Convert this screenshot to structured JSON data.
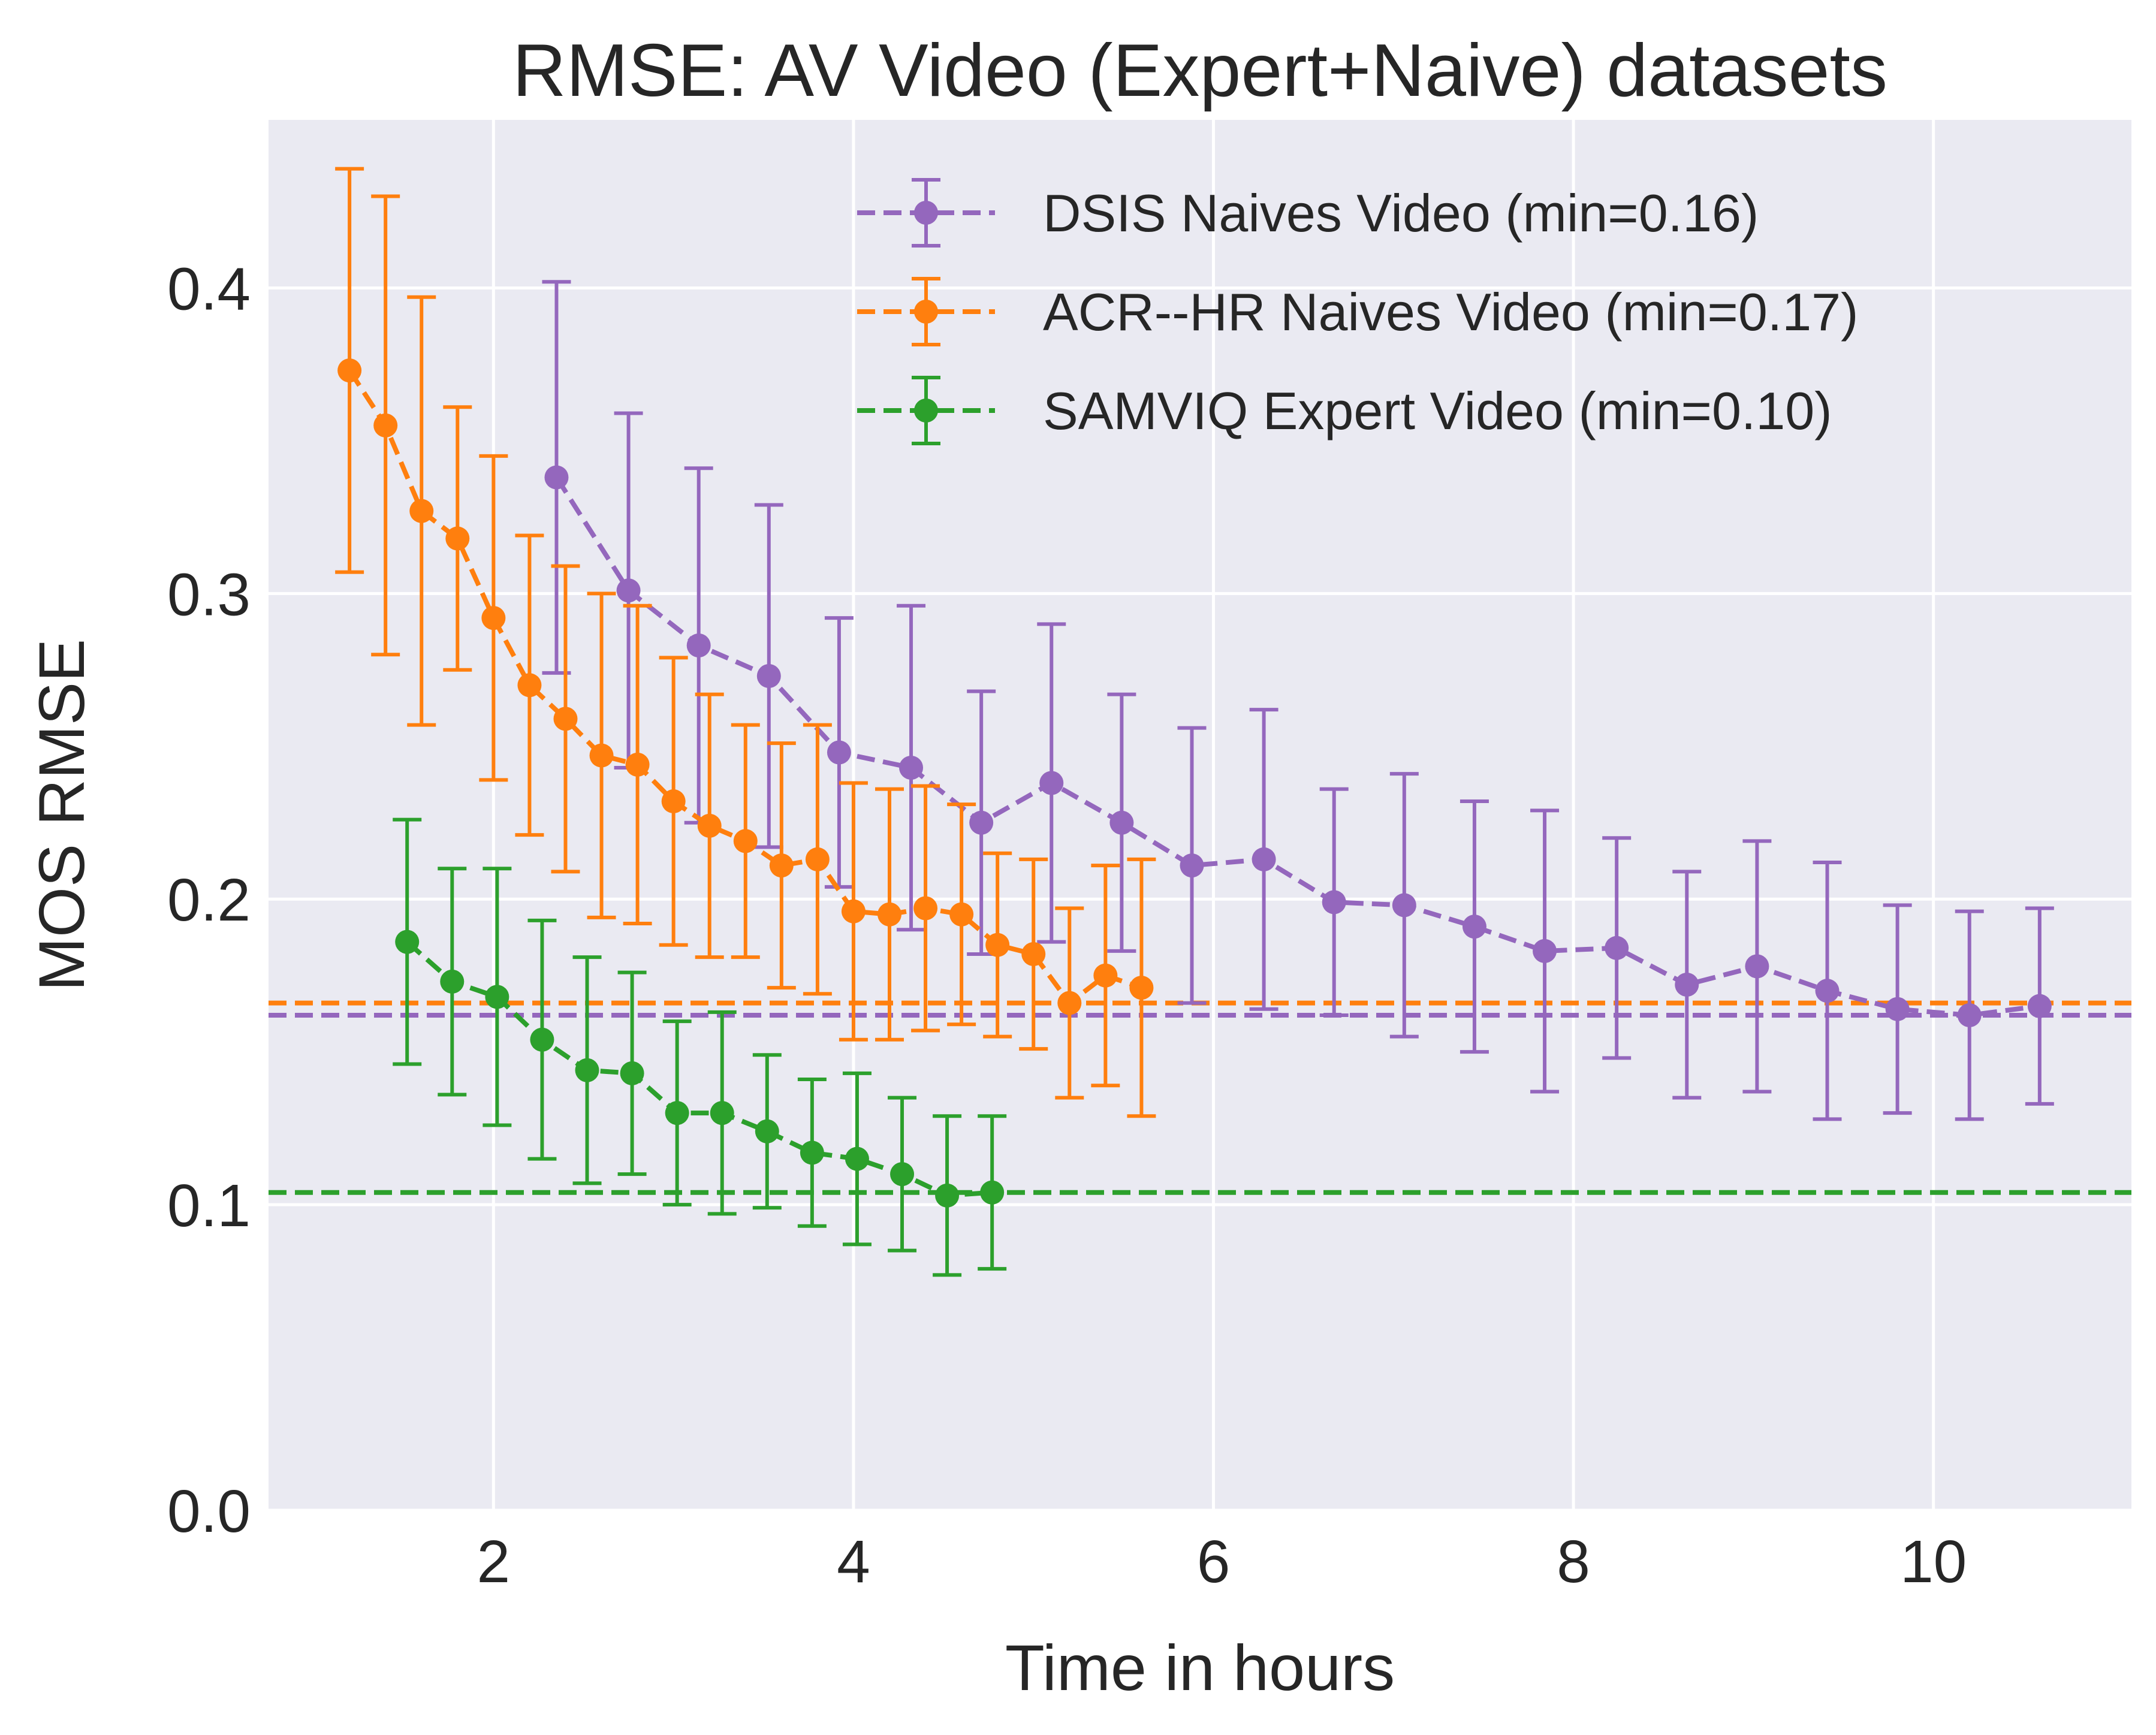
{
  "chart_data": {
    "type": "line",
    "title": "RMSE: AV Video (Expert+Naive) datasets",
    "xlabel": "Time in hours",
    "ylabel": "MOS RMSE",
    "xlim": [
      0.75,
      11.1
    ],
    "ylim": [
      0.0,
      0.455
    ],
    "xticks": [
      2,
      4,
      6,
      8,
      10
    ],
    "xtick_labels": [
      "2",
      "4",
      "6",
      "8",
      "10"
    ],
    "yticks": [
      0.0,
      0.1,
      0.2,
      0.3,
      0.4
    ],
    "ytick_labels": [
      "0.0",
      "0.1",
      "0.2",
      "0.3",
      "0.4"
    ],
    "grid": true,
    "legend_position": "top-right",
    "series": [
      {
        "name": "DSIS Naives Video (min=0.16)",
        "color": "#9467bd",
        "min_line": 0.162,
        "x": [
          2.35,
          2.75,
          3.14,
          3.53,
          3.92,
          4.32,
          4.71,
          5.1,
          5.49,
          5.88,
          6.28,
          6.67,
          7.06,
          7.45,
          7.84,
          8.24,
          8.63,
          9.02,
          9.41,
          9.8,
          10.2,
          10.59
        ],
        "y": [
          0.338,
          0.301,
          0.283,
          0.273,
          0.248,
          0.243,
          0.225,
          0.238,
          0.225,
          0.211,
          0.213,
          0.199,
          0.198,
          0.191,
          0.183,
          0.184,
          0.172,
          0.178,
          0.17,
          0.164,
          0.162,
          0.165
        ],
        "err": [
          0.064,
          0.058,
          0.058,
          0.056,
          0.044,
          0.053,
          0.043,
          0.052,
          0.042,
          0.045,
          0.049,
          0.037,
          0.043,
          0.041,
          0.046,
          0.036,
          0.037,
          0.041,
          0.042,
          0.034,
          0.034,
          0.032
        ]
      },
      {
        "name": "ACR--HR Naives Video (min=0.17)",
        "color": "#ff7f0e",
        "min_line": 0.166,
        "x": [
          1.2,
          1.4,
          1.6,
          1.8,
          2.0,
          2.2,
          2.4,
          2.6,
          2.8,
          3.0,
          3.2,
          3.4,
          3.6,
          3.8,
          4.0,
          4.2,
          4.4,
          4.6,
          4.8,
          5.0,
          5.2,
          5.4,
          5.6
        ],
        "y": [
          0.373,
          0.355,
          0.327,
          0.318,
          0.292,
          0.27,
          0.259,
          0.247,
          0.244,
          0.232,
          0.224,
          0.219,
          0.211,
          0.213,
          0.196,
          0.195,
          0.197,
          0.195,
          0.185,
          0.182,
          0.166,
          0.175,
          0.171
        ],
        "err": [
          0.066,
          0.075,
          0.07,
          0.043,
          0.053,
          0.049,
          0.05,
          0.053,
          0.052,
          0.047,
          0.043,
          0.038,
          0.04,
          0.044,
          0.042,
          0.041,
          0.04,
          0.036,
          0.03,
          0.031,
          0.031,
          0.036,
          0.042
        ]
      },
      {
        "name": "SAMVIQ Expert Video (min=0.10)",
        "color": "#2ca02c",
        "min_line": 0.104,
        "x": [
          1.52,
          1.77,
          2.02,
          2.27,
          2.52,
          2.77,
          3.02,
          3.27,
          3.52,
          3.77,
          4.02,
          4.27,
          4.52,
          4.77
        ],
        "y": [
          0.186,
          0.173,
          0.168,
          0.154,
          0.144,
          0.143,
          0.13,
          0.13,
          0.124,
          0.117,
          0.115,
          0.11,
          0.103,
          0.104
        ],
        "err": [
          0.04,
          0.037,
          0.042,
          0.039,
          0.037,
          0.033,
          0.03,
          0.033,
          0.025,
          0.024,
          0.028,
          0.025,
          0.026,
          0.025
        ]
      }
    ]
  }
}
